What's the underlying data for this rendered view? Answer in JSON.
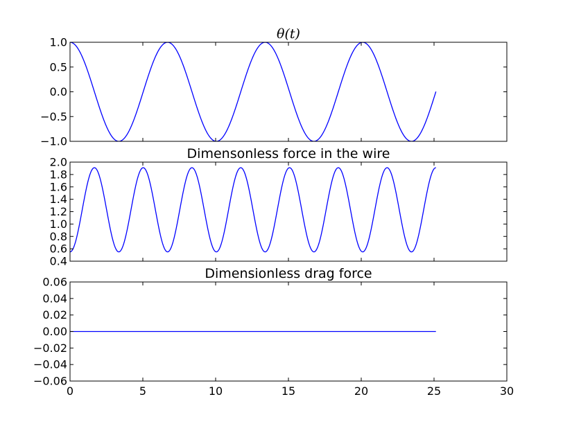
{
  "colors": {
    "line": "#0000ff",
    "axes": "#000000",
    "background": "#ffffff"
  },
  "chart_data": [
    {
      "type": "line",
      "title": "θ(t)",
      "xlim": [
        0,
        30
      ],
      "ylim": [
        -1.0,
        1.0
      ],
      "xticks": [
        0,
        5,
        10,
        15,
        20,
        25,
        30
      ],
      "yticks": [
        1.0,
        0.5,
        0.0,
        -0.5,
        -1.0
      ],
      "ytick_labels": [
        "1.0",
        "0.5",
        "0.0",
        "−0.5",
        "−1.0"
      ],
      "show_xtick_labels": false,
      "grid": false,
      "series": [
        {
          "kind": "cosine",
          "amplitude": 1.0,
          "offset": 0.0,
          "period": 6.7,
          "phase_start": "max",
          "x_start": 0,
          "x_end": 25.13
        }
      ]
    },
    {
      "type": "line",
      "title": "Dimensonless force in the wire",
      "xlim": [
        0,
        30
      ],
      "ylim": [
        0.4,
        2.0
      ],
      "xticks": [
        0,
        5,
        10,
        15,
        20,
        25,
        30
      ],
      "yticks": [
        2.0,
        1.8,
        1.6,
        1.4,
        1.2,
        1.0,
        0.8,
        0.6,
        0.4
      ],
      "ytick_labels": [
        "2.0",
        "1.8",
        "1.6",
        "1.4",
        "1.2",
        "1.0",
        "0.8",
        "0.6",
        "0.4"
      ],
      "show_xtick_labels": false,
      "grid": false,
      "series": [
        {
          "kind": "cosine",
          "min": 0.55,
          "max": 1.91,
          "period": 3.35,
          "phase_start": "min",
          "x_start": 0,
          "x_end": 25.13
        }
      ]
    },
    {
      "type": "line",
      "title": "Dimensionless drag force",
      "xlim": [
        0,
        30
      ],
      "ylim": [
        -0.06,
        0.06
      ],
      "xticks": [
        0,
        5,
        10,
        15,
        20,
        25,
        30
      ],
      "xtick_labels": [
        "0",
        "5",
        "10",
        "15",
        "20",
        "25",
        "30"
      ],
      "yticks": [
        0.06,
        0.04,
        0.02,
        0.0,
        -0.02,
        -0.04,
        -0.06
      ],
      "ytick_labels": [
        "0.06",
        "0.04",
        "0.02",
        "0.00",
        "−0.02",
        "−0.04",
        "−0.06"
      ],
      "show_xtick_labels": true,
      "grid": false,
      "series": [
        {
          "kind": "constant",
          "value": 0.0,
          "x_start": 0,
          "x_end": 25.13
        }
      ]
    }
  ]
}
